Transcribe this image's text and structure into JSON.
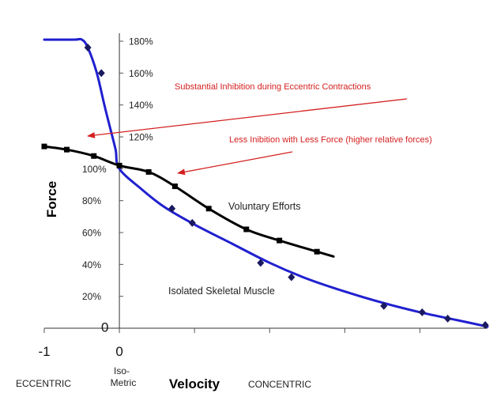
{
  "chart_data": {
    "type": "line",
    "xlabel": "Velocity",
    "ylabel": "Force",
    "xlim": [
      -1,
      4.9
    ],
    "ylim": [
      0,
      185
    ],
    "x_ticks": [
      {
        "value": -1,
        "label": "-1"
      },
      {
        "value": 0,
        "label": "0"
      }
    ],
    "y_ticks": [
      {
        "value": 0,
        "label": "0"
      },
      {
        "value": 20,
        "label": "20%"
      },
      {
        "value": 40,
        "label": "40%"
      },
      {
        "value": 60,
        "label": "60%"
      },
      {
        "value": 80,
        "label": "80%"
      },
      {
        "value": 100,
        "label": "100%"
      },
      {
        "value": 120,
        "label": "120%"
      },
      {
        "value": 140,
        "label": "140%"
      },
      {
        "value": 160,
        "label": "160%"
      },
      {
        "value": 180,
        "label": "180%"
      }
    ],
    "region_labels": {
      "eccentric": "ECCENTRIC",
      "isometric_line1": "Iso-",
      "isometric_line2": "Metric",
      "concentric": "CONCENTRIC"
    },
    "series": [
      {
        "name": "Isolated Skeletal Muscle",
        "color": "#2020d0",
        "curve": [
          [
            -1.0,
            181
          ],
          [
            -0.6,
            181
          ],
          [
            -0.5,
            181
          ],
          [
            -0.42,
            176
          ],
          [
            -0.3,
            160
          ],
          [
            -0.2,
            140
          ],
          [
            -0.12,
            125
          ],
          [
            -0.05,
            112
          ],
          [
            0.0,
            100
          ],
          [
            0.3,
            87
          ],
          [
            0.6,
            76
          ],
          [
            1.0,
            65
          ],
          [
            1.5,
            53
          ],
          [
            2.0,
            41
          ],
          [
            2.5,
            31
          ],
          [
            3.0,
            23
          ],
          [
            3.5,
            16
          ],
          [
            4.0,
            10
          ],
          [
            4.5,
            5
          ],
          [
            4.9,
            1
          ]
        ],
        "markers": [
          [
            -0.42,
            176
          ],
          [
            -0.24,
            160
          ],
          [
            0.7,
            75
          ],
          [
            0.97,
            66
          ],
          [
            1.88,
            41
          ],
          [
            2.29,
            32
          ],
          [
            3.52,
            14
          ],
          [
            4.03,
            10
          ],
          [
            4.37,
            6
          ],
          [
            4.87,
            2
          ]
        ]
      },
      {
        "name": "Voluntary Efforts",
        "color": "#000000",
        "curve": [
          [
            -1.0,
            114
          ],
          [
            -0.7,
            112
          ],
          [
            -0.34,
            108
          ],
          [
            0.0,
            102
          ],
          [
            0.39,
            98
          ],
          [
            0.74,
            89
          ],
          [
            1.19,
            75
          ],
          [
            1.69,
            62
          ],
          [
            2.13,
            55
          ],
          [
            2.63,
            48
          ],
          [
            2.85,
            45
          ]
        ],
        "markers": [
          [
            -1.0,
            114
          ],
          [
            -0.7,
            112
          ],
          [
            -0.34,
            108
          ],
          [
            0.0,
            102
          ],
          [
            0.39,
            98
          ],
          [
            0.74,
            89
          ],
          [
            1.19,
            75
          ],
          [
            1.69,
            62
          ],
          [
            2.13,
            55
          ],
          [
            2.63,
            48
          ]
        ]
      }
    ],
    "annotations": [
      {
        "text": "Substantial Inhibition during Eccentric Contractions",
        "color": "#d42020"
      },
      {
        "text": "Less Inibition with Less Force (higher relative forces)",
        "color": "#d42020"
      }
    ],
    "grid": false
  }
}
